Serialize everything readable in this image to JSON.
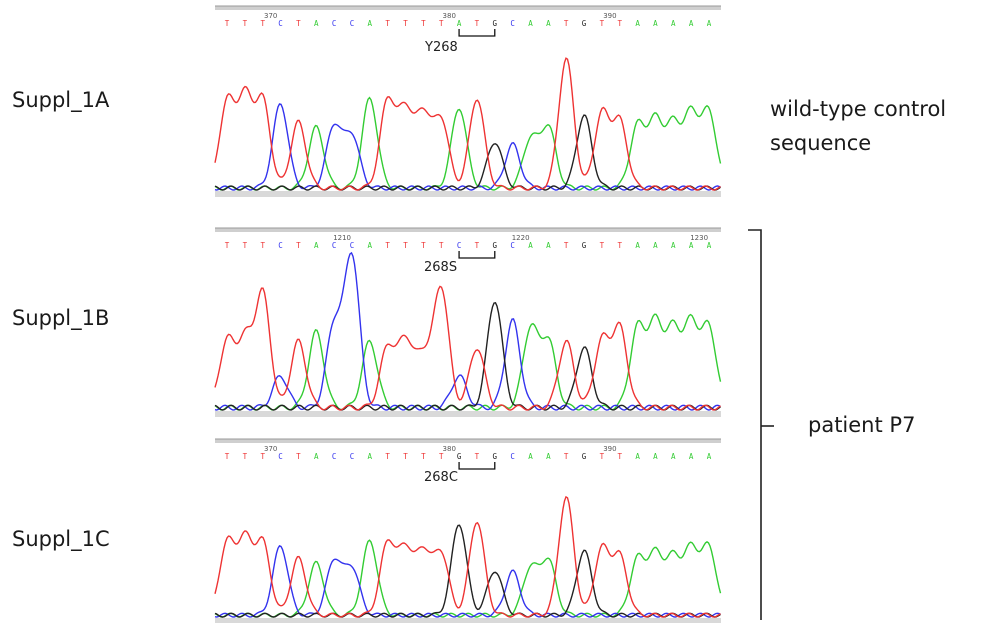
{
  "colors": {
    "A": "#33cc33",
    "C": "#3333ee",
    "G": "#222222",
    "T": "#ee3333",
    "ruler": "#9a9a9a"
  },
  "panels": [
    {
      "label": "Suppl_1A",
      "sequence": "TTTCTACCATTTTATGCAATGTTAAAAA",
      "ruler_numbers": [
        "370",
        "380",
        "390"
      ],
      "mutation_label": "Y268",
      "peaks": [
        0.65,
        0.68,
        0.66,
        0.64,
        0.5,
        0.46,
        0.47,
        0.4,
        0.68,
        0.66,
        0.58,
        0.55,
        0.52,
        0.61,
        0.68,
        0.35,
        0.33,
        0.37,
        0.46,
        0.98,
        0.55,
        0.56,
        0.5,
        0.47,
        0.5,
        0.47,
        0.55,
        0.57
      ]
    },
    {
      "label": "Suppl_1B",
      "sequence": "TTTCTACCATTTTCTGCAATGTTAAAAA",
      "ruler_numbers": [
        "1210",
        "1220",
        "1230"
      ],
      "mutation_label": "268S",
      "peaks": [
        0.42,
        0.42,
        0.72,
        0.2,
        0.42,
        0.48,
        0.52,
        0.96,
        0.42,
        0.38,
        0.42,
        0.32,
        0.76,
        0.2,
        0.38,
        0.68,
        0.55,
        0.5,
        0.42,
        0.42,
        0.38,
        0.42,
        0.5,
        0.5,
        0.52,
        0.48,
        0.52,
        0.5
      ]
    },
    {
      "label": "Suppl_1C",
      "sequence": "TTTCTACCATTTTGTGCAATGTTAAAAA",
      "ruler_numbers": [
        "370",
        "380",
        "390"
      ],
      "mutation_label": "268C",
      "peaks": [
        0.58,
        0.6,
        0.58,
        0.56,
        0.46,
        0.42,
        0.44,
        0.38,
        0.6,
        0.58,
        0.52,
        0.5,
        0.5,
        0.74,
        0.76,
        0.36,
        0.35,
        0.38,
        0.44,
        0.95,
        0.52,
        0.53,
        0.47,
        0.45,
        0.48,
        0.45,
        0.52,
        0.54
      ]
    }
  ],
  "annotation_a": {
    "line1": "wild-type control",
    "line2": "sequence"
  },
  "annotation_bc": "patient P7"
}
